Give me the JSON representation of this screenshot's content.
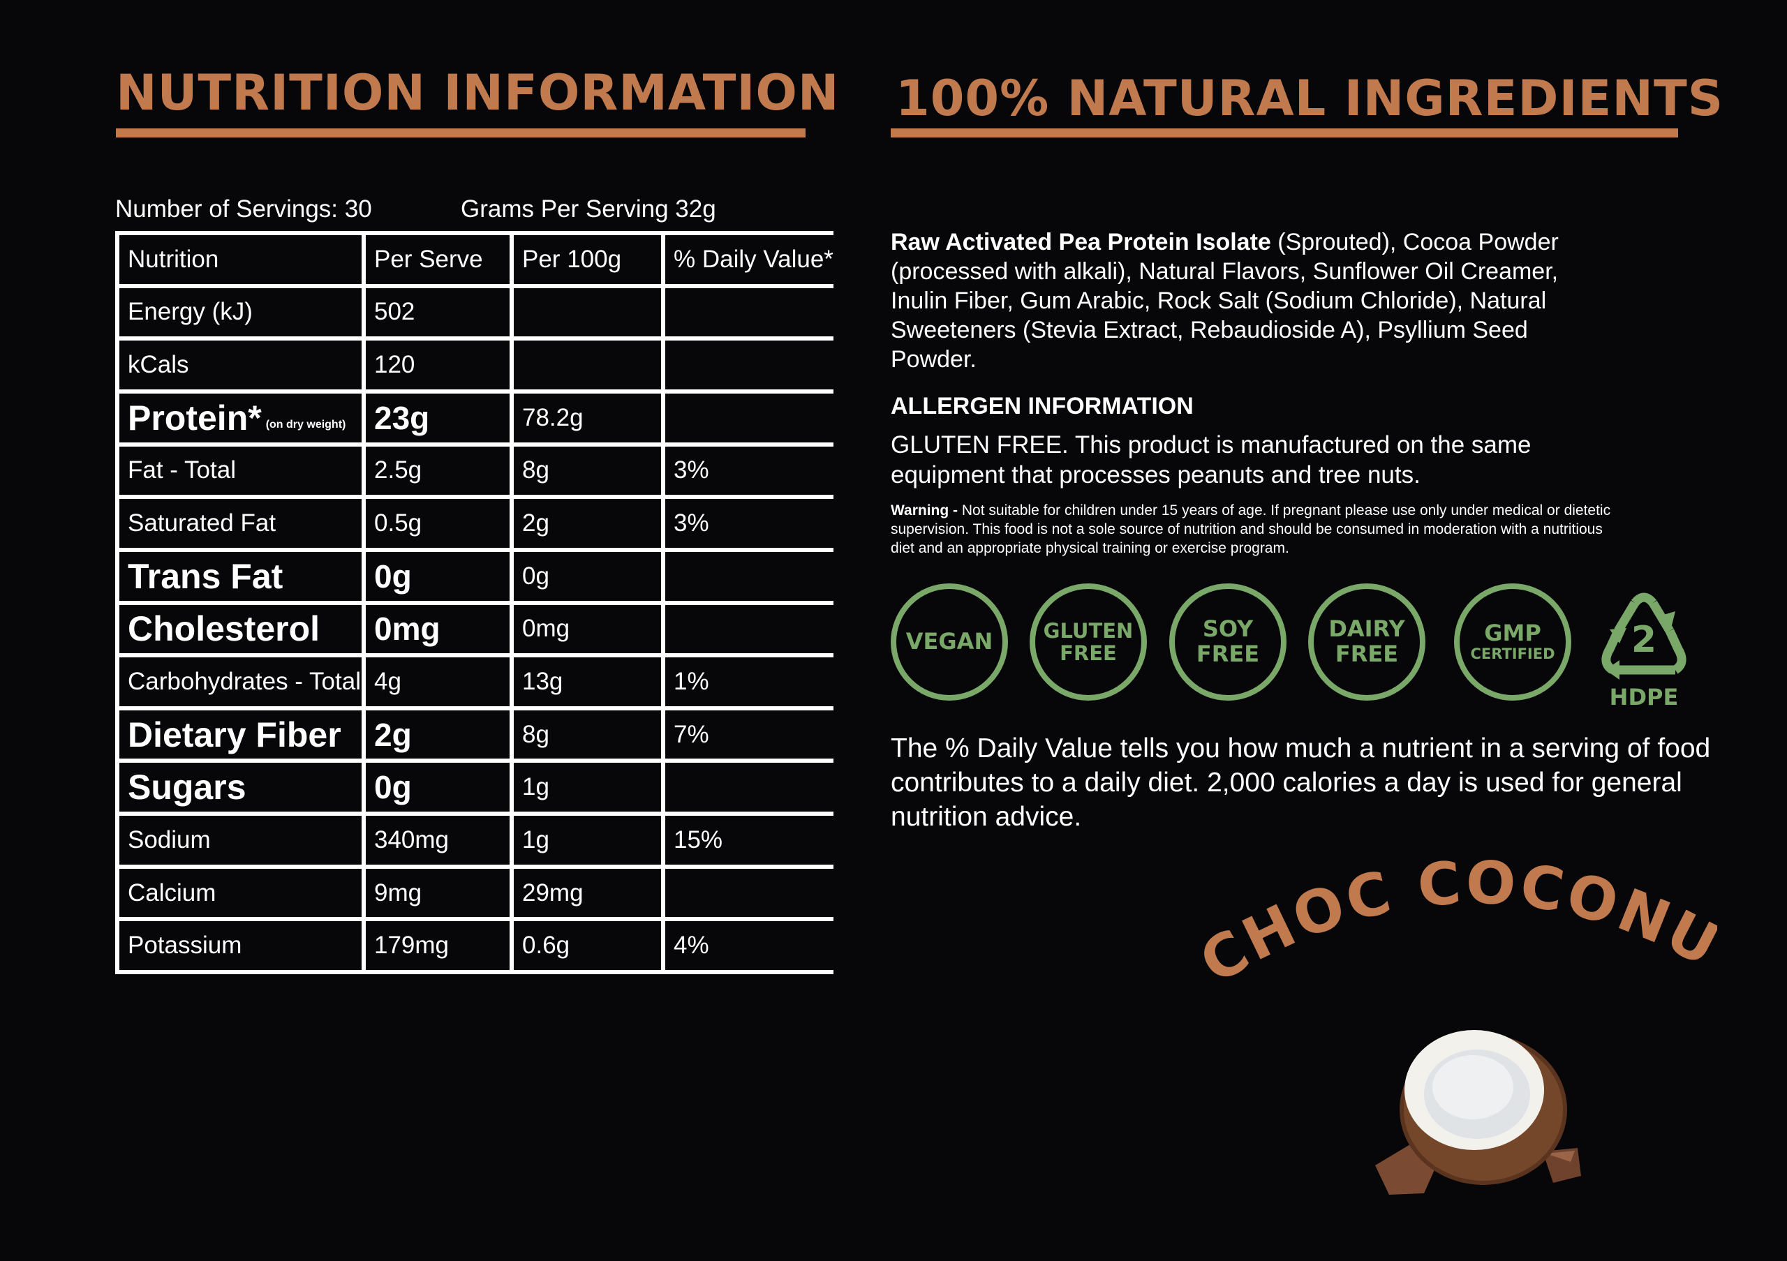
{
  "headings": {
    "nutrition": "NUTRITION INFORMATION",
    "ingredients": "100% NATURAL INGREDIENTS"
  },
  "servings": {
    "count": "Number of Servings: 30",
    "grams": "Grams Per Serving  32g"
  },
  "table": {
    "headers": [
      "Nutrition",
      "Per Serve",
      "Per 100g",
      "% Daily Value*"
    ],
    "rows": [
      {
        "name": "Energy (kJ)",
        "per_serve": "502",
        "per_100g": "",
        "dv": ""
      },
      {
        "name": "kCals",
        "per_serve": "120",
        "per_100g": "",
        "dv": ""
      },
      {
        "name": "Protein*",
        "note": "(on dry weight)",
        "per_serve": "23g",
        "per_100g": "78.2g",
        "dv": ""
      },
      {
        "name": "Fat - Total",
        "per_serve": "2.5g",
        "per_100g": "8g",
        "dv": "3%"
      },
      {
        "name": "Saturated Fat",
        "per_serve": "0.5g",
        "per_100g": "2g",
        "dv": "3%"
      },
      {
        "name": "Trans Fat",
        "per_serve": "0g",
        "per_100g": "0g",
        "dv": ""
      },
      {
        "name": "Cholesterol",
        "per_serve": "0mg",
        "per_100g": "0mg",
        "dv": ""
      },
      {
        "name": "Carbohydrates - Total",
        "per_serve": "4g",
        "per_100g": "13g",
        "dv": "1%"
      },
      {
        "name": "Dietary Fiber",
        "per_serve": "2g",
        "per_100g": "8g",
        "dv": "7%"
      },
      {
        "name": "Sugars",
        "per_serve": "0g",
        "per_100g": "1g",
        "dv": ""
      },
      {
        "name": "Sodium",
        "per_serve": "340mg",
        "per_100g": "1g",
        "dv": "15%"
      },
      {
        "name": "Calcium",
        "per_serve": "9mg",
        "per_100g": "29mg",
        "dv": ""
      },
      {
        "name": "Potassium",
        "per_serve": "179mg",
        "per_100g": "0.6g",
        "dv": "4%"
      }
    ]
  },
  "ingredients": {
    "bold_lead": "Raw Activated Pea Protein Isolate",
    "rest": " (Sprouted), Cocoa Powder (processed with alkali), Natural Flavors, Sunflower Oil Creamer, Inulin Fiber, Gum Arabic, Rock Salt (Sodium Chloride), Natural Sweeteners (Stevia Extract, Rebaudioside A), Psyllium Seed Powder."
  },
  "allergen": {
    "title": "ALLERGEN INFORMATION",
    "text": "GLUTEN FREE. This product is manufactured on the same equipment that processes peanuts and tree nuts."
  },
  "warning": {
    "label": "Warning -",
    "text": " Not suitable for children under 15 years of age. If pregnant please use only under medical or dietetic supervision. This food is not a sole source of nutrition and should be consumed in moderation with a nutritious diet and an appropriate physical training or exercise program."
  },
  "badges": {
    "vegan": [
      "VEGAN"
    ],
    "gluten": [
      "GLUTEN",
      "FREE"
    ],
    "soy": [
      "SOY",
      "FREE"
    ],
    "dairy": [
      "DAIRY",
      "FREE"
    ],
    "gmp": [
      "GMP",
      "CERTIFIED"
    ]
  },
  "recycle": {
    "number": "2",
    "label": "HDPE"
  },
  "dv_note": "The % Daily Value tells you how much a nutrient in a serving of food contributes to a daily diet. 2,000 calories a day is used for general nutrition advice.",
  "flavor": "CHOC COCONUT",
  "colors": {
    "background": "#070709",
    "accent": "#c17a4e",
    "badge_green": "#79a868",
    "text": "#ffffff"
  }
}
